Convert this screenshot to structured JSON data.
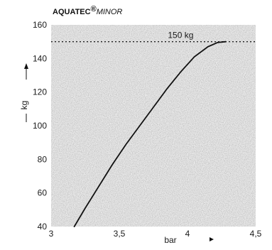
{
  "chart_data": {
    "type": "line",
    "title_brand": "AQUATEC",
    "title_model": "MINOR",
    "registered_mark": "®",
    "xlabel": "bar",
    "ylabel": "kg",
    "xlim": [
      3,
      4.5
    ],
    "ylim": [
      40,
      160
    ],
    "x_ticks": [
      3,
      3.5,
      4,
      4.5
    ],
    "x_tick_labels": [
      "3",
      "3,5",
      "4",
      "4,5"
    ],
    "y_ticks": [
      40,
      60,
      80,
      100,
      120,
      140,
      160
    ],
    "y_tick_labels": [
      "40",
      "60",
      "80",
      "100",
      "120",
      "140",
      "160"
    ],
    "grid": false,
    "reference_line": {
      "y": 150,
      "label": "150 kg",
      "style": "dotted"
    },
    "series": [
      {
        "x": [
          3.17,
          3.25,
          3.35,
          3.45,
          3.55,
          3.65,
          3.75,
          3.85,
          3.95,
          4.05,
          4.15,
          4.22,
          4.28
        ],
        "y": [
          40,
          51,
          64,
          77,
          89,
          100,
          111,
          122,
          132,
          141,
          147,
          149.5,
          150
        ]
      }
    ]
  }
}
